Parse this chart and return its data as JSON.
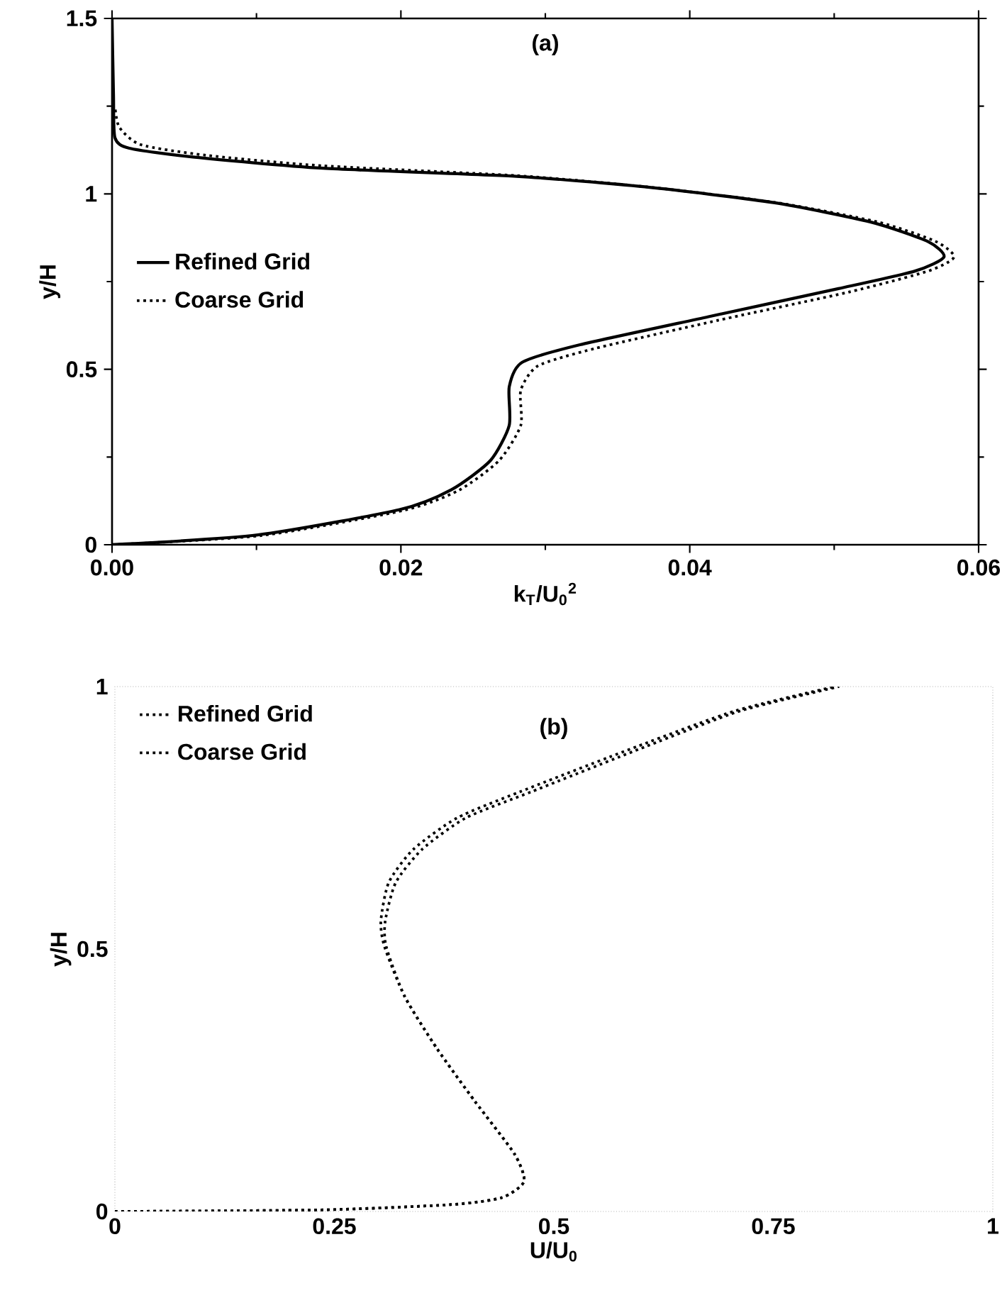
{
  "chart_data": [
    {
      "type": "line",
      "xlabel": "k$_{T}$/U$_{0}$$^{2}$",
      "ylabel": "y/H",
      "annotations": [
        "(a)"
      ],
      "xlim": [
        0,
        0.06
      ],
      "ylim": [
        0,
        1.5
      ],
      "xticks": [
        {
          "value": 0,
          "label": "0.00"
        },
        {
          "value": 0.02,
          "label": "0.02"
        },
        {
          "value": 0.04,
          "label": "0.04"
        },
        {
          "value": 0.06,
          "label": "0.06"
        }
      ],
      "yticks": [
        0,
        0.5,
        1,
        1.5
      ],
      "legend": "left",
      "series": [
        {
          "name": "Refined Grid",
          "color": "#000000",
          "line_style": "solid",
          "x": [
            0,
            0.0101,
            0.0199,
            0.0235,
            0.0262,
            0.0275,
            0.0275,
            0.0284,
            0.0324,
            0.0413,
            0.0503,
            0.0556,
            0.0576,
            0.0565,
            0.0525,
            0.0458,
            0.0369,
            0.028,
            0.0146,
            0.0056,
            0.0012,
            0.0002,
            0.0001,
            0
          ],
          "values": [
            0,
            0.028,
            0.1,
            0.157,
            0.24,
            0.34,
            0.45,
            0.52,
            0.57,
            0.65,
            0.73,
            0.78,
            0.82,
            0.864,
            0.92,
            0.975,
            1.02,
            1.05,
            1.073,
            1.105,
            1.13,
            1.16,
            1.28,
            1.5
          ]
        },
        {
          "name": "Coarse Grid",
          "color": "#000000",
          "line_style": "dotted",
          "x": [
            0,
            0.0103,
            0.0202,
            0.024,
            0.0268,
            0.0283,
            0.0283,
            0.0295,
            0.0335,
            0.042,
            0.051,
            0.0565,
            0.0583,
            0.057,
            0.053,
            0.046,
            0.037,
            0.028,
            0.0146,
            0.0065,
            0.002,
            0.0005,
            0.0002
          ],
          "values": [
            0,
            0.026,
            0.098,
            0.155,
            0.24,
            0.34,
            0.44,
            0.51,
            0.56,
            0.64,
            0.72,
            0.78,
            0.82,
            0.865,
            0.92,
            0.975,
            1.02,
            1.052,
            1.08,
            1.11,
            1.14,
            1.19,
            1.25
          ]
        }
      ]
    },
    {
      "type": "line",
      "xlabel": "U/U$_{0}$",
      "ylabel": "y/H",
      "annotations": [
        "(b)"
      ],
      "xlim": [
        0,
        1
      ],
      "ylim": [
        0,
        1
      ],
      "xticks": [
        0,
        0.25,
        0.5,
        0.75,
        1
      ],
      "yticks": [
        0,
        0.5,
        1
      ],
      "legend": "top left",
      "series": [
        {
          "name": "Refined Grid",
          "color": "#000000",
          "line_style": "dotted",
          "x": [
            0,
            0.235,
            0.382,
            0.44,
            0.466,
            0.455,
            0.41,
            0.367,
            0.33,
            0.307,
            0.303,
            0.312,
            0.34,
            0.39,
            0.462,
            0.595,
            0.707,
            0.82
          ],
          "values": [
            0,
            0.003,
            0.013,
            0.026,
            0.057,
            0.11,
            0.21,
            0.31,
            0.41,
            0.505,
            0.554,
            0.627,
            0.69,
            0.75,
            0.8,
            0.886,
            0.954,
            1
          ]
        },
        {
          "name": "Coarse Grid",
          "color": "#000000",
          "line_style": "dotted",
          "x": [
            0,
            0.235,
            0.382,
            0.44,
            0.466,
            0.455,
            0.41,
            0.367,
            0.33,
            0.309,
            0.308,
            0.32,
            0.35,
            0.4,
            0.475,
            0.605,
            0.713,
            0.825
          ],
          "values": [
            0,
            0.003,
            0.013,
            0.026,
            0.057,
            0.11,
            0.21,
            0.31,
            0.41,
            0.505,
            0.554,
            0.627,
            0.69,
            0.75,
            0.8,
            0.886,
            0.954,
            1
          ]
        }
      ]
    }
  ]
}
